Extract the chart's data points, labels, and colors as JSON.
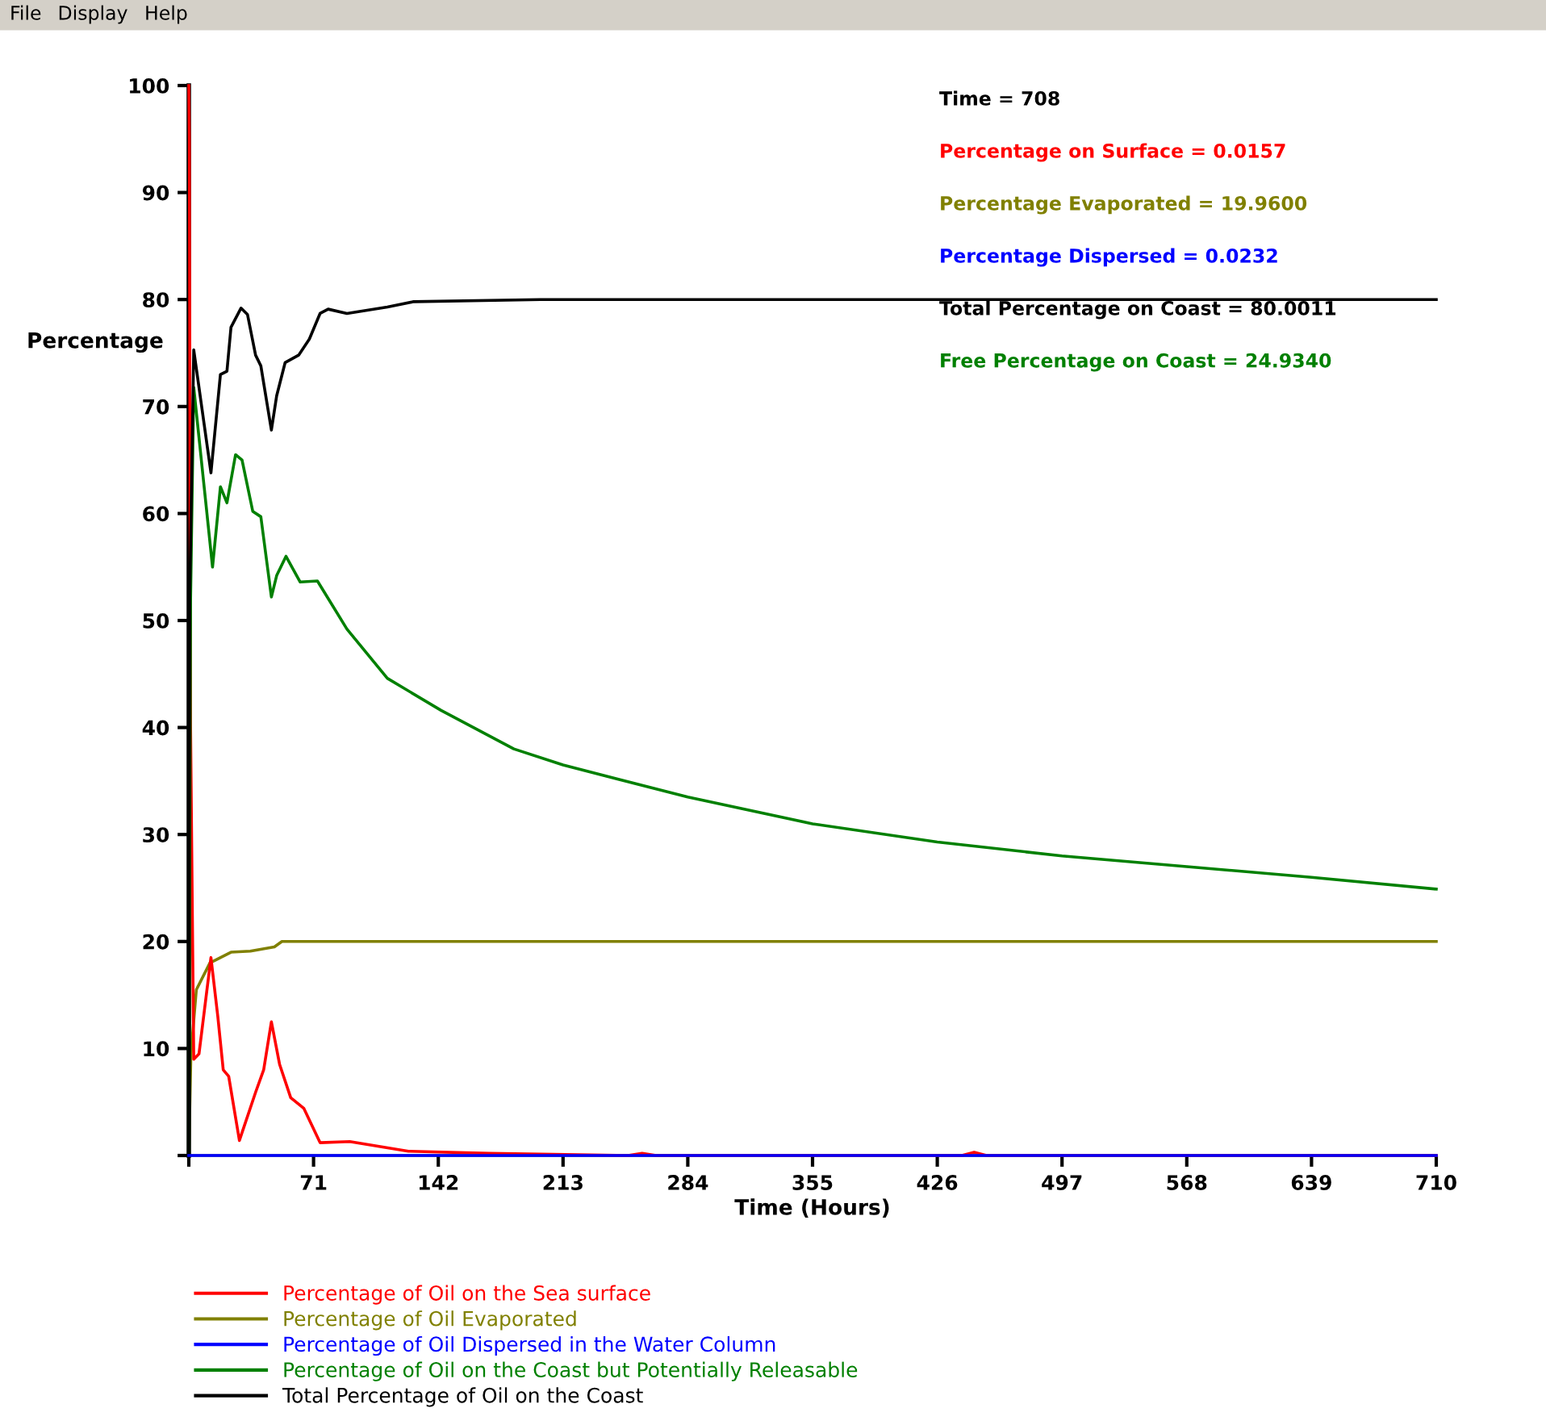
{
  "chart_data": {
    "type": "line",
    "xlabel": "Time (Hours)",
    "ylabel": "Percentage",
    "xlim": [
      0,
      710
    ],
    "ylim": [
      0,
      100
    ],
    "xticks": [
      {
        "value": 0,
        "label": null
      },
      71,
      142,
      213,
      284,
      355,
      426,
      497,
      568,
      639,
      710
    ],
    "yticks": [
      {
        "value": 0,
        "label": null
      },
      10,
      20,
      30,
      40,
      50,
      60,
      70,
      80,
      90,
      100
    ],
    "grid": false,
    "legend": "bottom left",
    "marker": "none",
    "line_style": "solid",
    "annotations": [
      "File",
      "Display",
      "Help",
      "Time = 708",
      "Percentage on Surface = 0.0157",
      "Percentage Evaporated = 19.9600",
      "Percentage Dispersed = 0.0232",
      "Total Percentage on Coast = 80.0011",
      "Free Percentage on Coast = 24.9340"
    ],
    "series": [
      {
        "name": "Percentage of Oil on the Sea surface",
        "color": "#ff0000",
        "x": [
          0,
          0.3,
          1,
          2.8,
          5.8,
          12.6,
          16.5,
          19.6,
          22.7,
          28.8,
          38,
          42.6,
          47,
          51.7,
          58,
          65.5,
          74.7,
          91.6,
          125,
          171,
          250,
          258,
          266,
          440,
          447,
          454,
          710
        ],
        "values": [
          100,
          95,
          40,
          9,
          9.5,
          18.5,
          13,
          8,
          7.4,
          1.4,
          5.9,
          8,
          12.5,
          8.5,
          5.4,
          4.4,
          1.2,
          1.3,
          0.4,
          0.2,
          0,
          0.2,
          0,
          0,
          0.3,
          0,
          0
        ]
      },
      {
        "name": "Percentage of Oil Evaporated",
        "color": "#808000",
        "x": [
          0,
          1.2,
          4.3,
          12,
          24,
          35,
          48.7,
          53,
          710
        ],
        "values": [
          0,
          9.5,
          15.5,
          18,
          19,
          19.1,
          19.5,
          20,
          20
        ]
      },
      {
        "name": "Percentage of Oil Dispersed in the Water Column",
        "color": "#0000ff",
        "x": [
          0,
          710
        ],
        "values": [
          0,
          0
        ]
      },
      {
        "name": "Percentage of Oil on the Coast but Potentially Releasable",
        "color": "#008000",
        "x": [
          0,
          1,
          2.8,
          13.5,
          18,
          21.7,
          26.6,
          30.3,
          36.4,
          41,
          47,
          50,
          55.3,
          63.4,
          73.2,
          90,
          113,
          143.6,
          185,
          213,
          284,
          355,
          426,
          497,
          568,
          639,
          710
        ],
        "values": [
          0,
          52,
          71.8,
          55,
          62.5,
          61,
          65.5,
          65,
          60.2,
          59.7,
          52.2,
          54.2,
          56,
          53.6,
          53.7,
          49.2,
          44.6,
          41.6,
          38,
          36.5,
          33.5,
          31,
          29.3,
          28,
          27,
          26,
          24.9
        ]
      },
      {
        "name": "Total Percentage of Oil on the Coast",
        "color": "#000000",
        "x": [
          0,
          0.5,
          2.8,
          12.6,
          18,
          21.7,
          24,
          29.7,
          33.4,
          38,
          41,
          47,
          50,
          54.8,
          62.5,
          68.6,
          74.7,
          79.3,
          90,
          113,
          128,
          200,
          710
        ],
        "values": [
          0,
          52,
          75.3,
          63.8,
          73,
          73.3,
          77.4,
          79.2,
          78.6,
          74.8,
          73.8,
          67.8,
          71,
          74.1,
          74.8,
          76.3,
          78.7,
          79.1,
          78.7,
          79.3,
          79.8,
          80,
          80
        ]
      }
    ]
  }
}
